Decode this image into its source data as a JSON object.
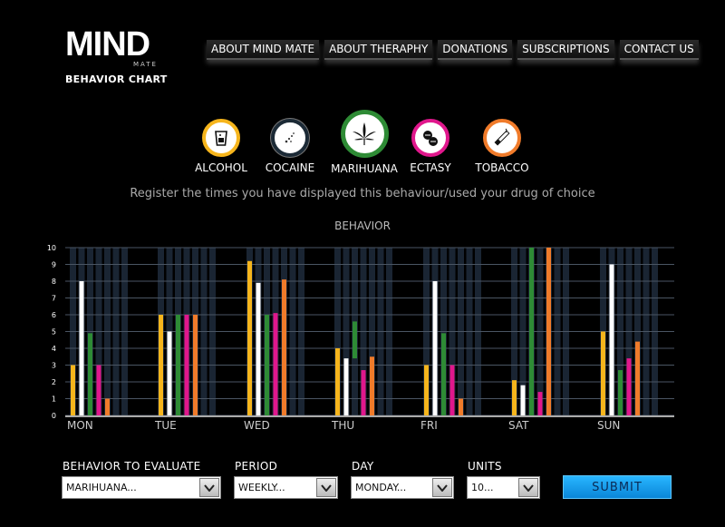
{
  "logo": {
    "word": "MIND",
    "sub": "MATE",
    "caption": "BEHAVIOR CHART"
  },
  "nav": [
    "ABOUT MIND MATE",
    "ABOUT THERAPHY",
    "DONATIONS",
    "SUBSCRIPTIONS",
    "CONTACT US"
  ],
  "drugs": [
    {
      "label": "ALCOHOL",
      "icon": "glass-icon",
      "color": "#f6b51c"
    },
    {
      "label": "COCAINE",
      "icon": "powder-icon",
      "color": "#1c2a36"
    },
    {
      "label": "MARIHUANA",
      "icon": "leaf-icon",
      "color": "#2e8b35",
      "selected": true
    },
    {
      "label": "ECTASY",
      "icon": "pills-icon",
      "color": "#e0178c"
    },
    {
      "label": "TOBACCO",
      "icon": "cigarette-icon",
      "color": "#f07b2a"
    }
  ],
  "instruction": "Register the times you have displayed this behaviour/used your drug of choice",
  "chart_data": {
    "type": "bar",
    "title": "BEHAVIOR",
    "categories": [
      "MON",
      "TUE",
      "WED",
      "THU",
      "FRI",
      "SAT",
      "SUN"
    ],
    "series": [
      {
        "color": "#f6b51c",
        "values": [
          3,
          6,
          9.2,
          4,
          3,
          2.1,
          5
        ]
      },
      {
        "color": "#ffffff",
        "values": [
          8,
          5,
          7.9,
          3.4,
          8,
          1.8,
          9
        ]
      },
      {
        "color": "#2e8b35",
        "values": [
          4.9,
          6,
          6,
          5.6,
          4.9,
          10,
          2.7
        ],
        "bottom": [
          0,
          0,
          0,
          3.4,
          0,
          0,
          0
        ]
      },
      {
        "color": "#e0178c",
        "values": [
          3,
          6,
          6.1,
          2.7,
          3,
          1.4,
          3.4
        ]
      },
      {
        "color": "#f07b2a",
        "values": [
          1,
          6,
          8.1,
          3.5,
          1,
          10,
          4.4
        ]
      }
    ],
    "ylim": [
      0,
      10
    ],
    "yticks": [
      "0",
      "1",
      "2",
      "3",
      "4",
      "5",
      "6",
      "7",
      "8",
      "9",
      "10"
    ],
    "grid": true
  },
  "form": {
    "behavior": {
      "label": "BEHAVIOR TO EVALUATE",
      "value": "MARIHUANA..."
    },
    "period": {
      "label": "PERIOD",
      "value": "WEEKLY..."
    },
    "day": {
      "label": "DAY",
      "value": "MONDAY..."
    },
    "units": {
      "label": "UNITS",
      "value": "10..."
    },
    "submit": "SUBMIT"
  }
}
